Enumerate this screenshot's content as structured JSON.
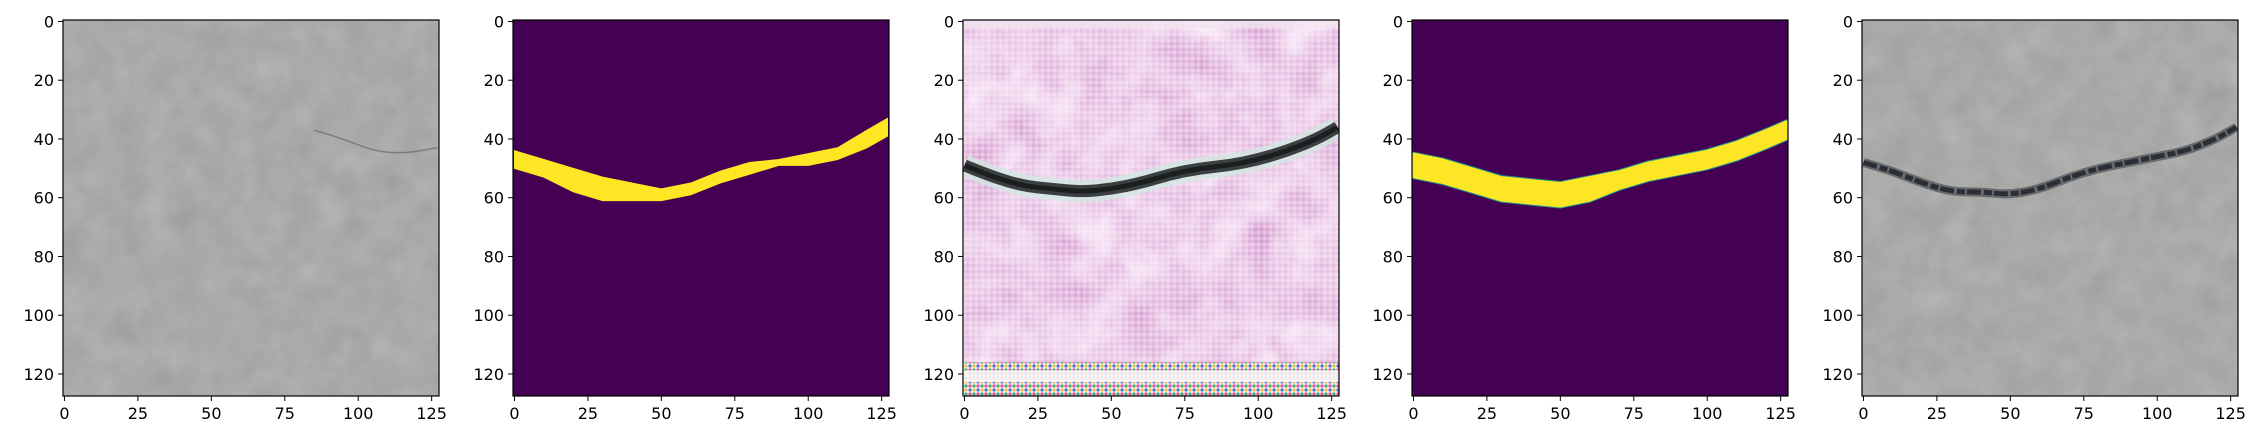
{
  "chart_data": [
    {
      "type": "image",
      "panel": "input-photo",
      "content": "gray concrete texture with faint crack",
      "palette": {
        "base": "#8f8f8d",
        "dark": "#6e6f6d",
        "light": "#a5a5a3"
      },
      "x_ticks": [
        "0",
        "25",
        "50",
        "75",
        "100",
        "125"
      ],
      "y_ticks": [
        "0",
        "20",
        "40",
        "60",
        "80",
        "100",
        "120"
      ],
      "xlim": [
        -0.5,
        127.5
      ],
      "ylim": [
        127.5,
        -0.5
      ]
    },
    {
      "type": "image",
      "panel": "ground-truth-mask",
      "content": "binary crack mask",
      "palette": {
        "background": "#440154",
        "foreground": "#fde725"
      },
      "crack_centerline": [
        [
          0,
          47
        ],
        [
          10,
          50
        ],
        [
          20,
          54
        ],
        [
          30,
          57
        ],
        [
          40,
          58
        ],
        [
          50,
          59
        ],
        [
          60,
          57
        ],
        [
          70,
          53
        ],
        [
          80,
          50
        ],
        [
          90,
          48
        ],
        [
          100,
          47
        ],
        [
          110,
          45
        ],
        [
          120,
          40
        ],
        [
          127,
          36
        ]
      ],
      "crack_half_width": [
        3,
        3,
        4,
        4,
        3,
        2,
        2,
        2,
        2,
        1,
        2,
        2,
        3,
        3
      ],
      "x_ticks": [
        "0",
        "25",
        "50",
        "75",
        "100",
        "125"
      ],
      "y_ticks": [
        "0",
        "20",
        "40",
        "60",
        "80",
        "100",
        "120"
      ],
      "xlim": [
        -0.5,
        127.5
      ],
      "ylim": [
        127.5,
        -0.5
      ]
    },
    {
      "type": "image",
      "panel": "generated-image",
      "content": "pink checkerboard-artifact texture with dark crack",
      "palette": {
        "base": "#d9a5d3",
        "light": "#f0d8ee",
        "dark": "#3a3f40",
        "crack_edge": "#d0e8e0"
      },
      "crack_centerline": [
        [
          0,
          49
        ],
        [
          10,
          53
        ],
        [
          20,
          56
        ],
        [
          30,
          57
        ],
        [
          40,
          58
        ],
        [
          50,
          57
        ],
        [
          60,
          55
        ],
        [
          70,
          52
        ],
        [
          80,
          50
        ],
        [
          90,
          49
        ],
        [
          100,
          47
        ],
        [
          110,
          44
        ],
        [
          120,
          40
        ],
        [
          127,
          36
        ]
      ],
      "x_ticks": [
        "0",
        "25",
        "50",
        "75",
        "100",
        "125"
      ],
      "y_ticks": [
        "0",
        "20",
        "40",
        "60",
        "80",
        "100",
        "120"
      ],
      "xlim": [
        -0.5,
        127.5
      ],
      "ylim": [
        127.5,
        -0.5
      ]
    },
    {
      "type": "image",
      "panel": "predicted-mask",
      "content": "smooth predicted crack mask",
      "palette": {
        "background": "#440154",
        "foreground": "#fde725",
        "edge": "#21918c"
      },
      "crack_centerline": [
        [
          0,
          49
        ],
        [
          10,
          51
        ],
        [
          20,
          54
        ],
        [
          30,
          57
        ],
        [
          40,
          58
        ],
        [
          50,
          59
        ],
        [
          60,
          57
        ],
        [
          70,
          54
        ],
        [
          80,
          51
        ],
        [
          90,
          49
        ],
        [
          100,
          47
        ],
        [
          110,
          44
        ],
        [
          120,
          40
        ],
        [
          127,
          37
        ]
      ],
      "crack_half_width": [
        4,
        4,
        4,
        4,
        4,
        4,
        4,
        3,
        3,
        3,
        3,
        3,
        3,
        3
      ],
      "x_ticks": [
        "0",
        "25",
        "50",
        "75",
        "100",
        "125"
      ],
      "y_ticks": [
        "0",
        "20",
        "40",
        "60",
        "80",
        "100",
        "120"
      ],
      "xlim": [
        -0.5,
        127.5
      ],
      "ylim": [
        127.5,
        -0.5
      ]
    },
    {
      "type": "image",
      "panel": "overlay-photo",
      "content": "gray concrete texture with dark crack overlaid",
      "palette": {
        "base": "#8f8f8d",
        "dark": "#6e6f6d",
        "light": "#a5a5a3",
        "crack": "#2b2f33"
      },
      "crack_centerline": [
        [
          0,
          48
        ],
        [
          10,
          51
        ],
        [
          20,
          55
        ],
        [
          30,
          58
        ],
        [
          40,
          58
        ],
        [
          50,
          59
        ],
        [
          60,
          57
        ],
        [
          70,
          53
        ],
        [
          80,
          50
        ],
        [
          90,
          48
        ],
        [
          100,
          46
        ],
        [
          110,
          44
        ],
        [
          120,
          40
        ],
        [
          127,
          36
        ]
      ],
      "x_ticks": [
        "0",
        "25",
        "50",
        "75",
        "100",
        "125"
      ],
      "y_ticks": [
        "0",
        "20",
        "40",
        "60",
        "80",
        "100",
        "120"
      ],
      "xlim": [
        -0.5,
        127.5
      ],
      "ylim": [
        127.5,
        -0.5
      ]
    }
  ]
}
